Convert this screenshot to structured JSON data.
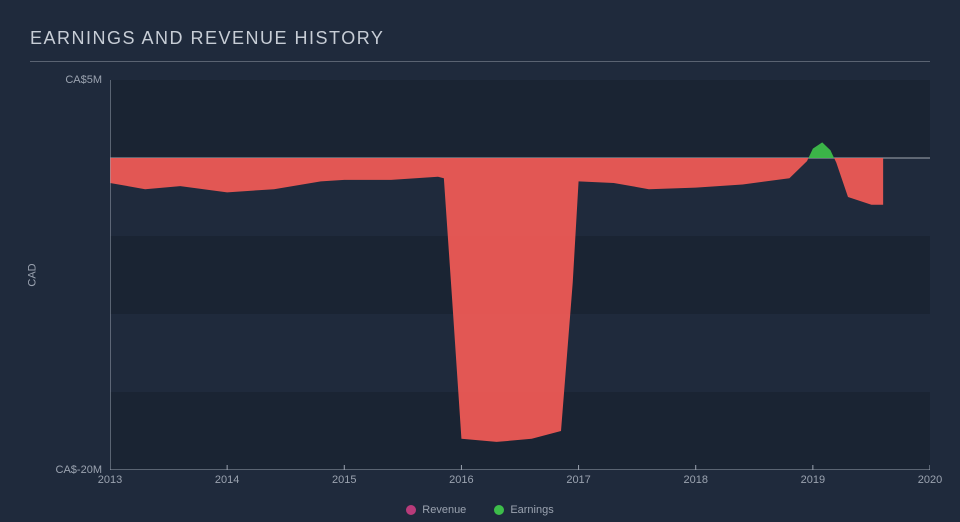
{
  "chart": {
    "type": "area",
    "title": "EARNINGS AND REVENUE HISTORY",
    "title_fontsize": 18,
    "title_color": "#c7cdd6",
    "background_color": "#1f2a3c",
    "plot_background_color": "#1f2a3c",
    "band_color": "#1a2433",
    "title_underline_color": "#5a6372",
    "axis_line_color": "#9ba3b0",
    "tick_color": "#9ba3b0",
    "label_color": "#9ba3b0",
    "zero_line_color": "#cfd3da",
    "label_fontsize": 11,
    "x": {
      "min": 2013,
      "max": 2020,
      "ticks": [
        2013,
        2014,
        2015,
        2016,
        2017,
        2018,
        2019,
        2020
      ],
      "tick_labels": [
        "2013",
        "2014",
        "2015",
        "2016",
        "2017",
        "2018",
        "2019",
        "2020"
      ]
    },
    "y": {
      "min": -20,
      "max": 5,
      "title": "CAD",
      "ticks": [
        -20,
        0,
        5
      ],
      "tick_labels": {
        "5": "CA$5M",
        "0": "CAD",
        "-20": "CA$-20M"
      },
      "bands": [
        {
          "from": 5,
          "to": 0
        },
        {
          "from": -5,
          "to": -10
        },
        {
          "from": -15,
          "to": -20
        }
      ]
    },
    "series": [
      {
        "name": "Revenue",
        "color": "#b83b7a",
        "fill_opacity": 0.95,
        "data": [
          [
            2013.0,
            0
          ],
          [
            2013.5,
            0
          ],
          [
            2014.0,
            0
          ],
          [
            2014.5,
            0
          ],
          [
            2015.0,
            0
          ],
          [
            2015.5,
            0
          ],
          [
            2016.0,
            0
          ],
          [
            2016.5,
            0
          ],
          [
            2017.0,
            0
          ],
          [
            2017.5,
            0
          ],
          [
            2018.0,
            0
          ],
          [
            2018.5,
            0
          ],
          [
            2019.0,
            0
          ],
          [
            2019.5,
            0
          ],
          [
            2019.6,
            0
          ]
        ]
      },
      {
        "name": "Earnings",
        "color": "#3dbd4a",
        "fill_opacity": 0.95,
        "data": [
          [
            2013.0,
            -1.6
          ],
          [
            2013.3,
            -2.0
          ],
          [
            2013.6,
            -1.8
          ],
          [
            2014.0,
            -2.2
          ],
          [
            2014.4,
            -2.0
          ],
          [
            2014.8,
            -1.5
          ],
          [
            2015.0,
            -1.4
          ],
          [
            2015.4,
            -1.4
          ],
          [
            2015.8,
            -1.2
          ],
          [
            2015.85,
            -1.3
          ],
          [
            2015.92,
            -9.0
          ],
          [
            2016.0,
            -18.0
          ],
          [
            2016.3,
            -18.2
          ],
          [
            2016.6,
            -18.0
          ],
          [
            2016.85,
            -17.5
          ],
          [
            2016.95,
            -8.0
          ],
          [
            2017.0,
            -1.5
          ],
          [
            2017.3,
            -1.6
          ],
          [
            2017.6,
            -2.0
          ],
          [
            2018.0,
            -1.9
          ],
          [
            2018.4,
            -1.7
          ],
          [
            2018.8,
            -1.3
          ],
          [
            2018.95,
            -0.2
          ],
          [
            2019.0,
            0.6
          ],
          [
            2019.08,
            1.0
          ],
          [
            2019.15,
            0.5
          ],
          [
            2019.2,
            -0.3
          ],
          [
            2019.3,
            -2.5
          ],
          [
            2019.5,
            -3.0
          ],
          [
            2019.6,
            -3.0
          ]
        ]
      }
    ],
    "negative_fill_color": "#ed5a55",
    "legend": {
      "items": [
        {
          "label": "Revenue",
          "color": "#b83b7a"
        },
        {
          "label": "Earnings",
          "color": "#3dbd4a"
        }
      ]
    }
  }
}
